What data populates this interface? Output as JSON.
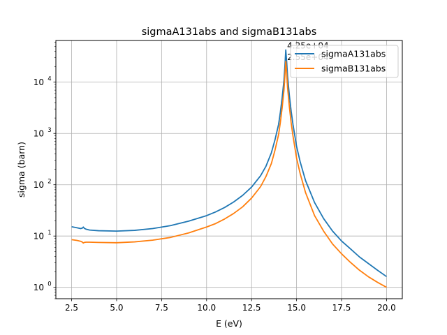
{
  "chart_data": {
    "type": "line",
    "title": "sigmaA131abs and sigmaB131abs",
    "xlabel": "E (eV)",
    "ylabel": "sigma (barn)",
    "x_scale": "linear",
    "y_scale": "log",
    "xlim": [
      1.625,
      20.875
    ],
    "ylim": [
      0.6,
      65000
    ],
    "grid": true,
    "legend_position": "upper-right",
    "x_ticks": [
      {
        "value": 2.5,
        "label": "2.5"
      },
      {
        "value": 5.0,
        "label": "5.0"
      },
      {
        "value": 7.5,
        "label": "7.5"
      },
      {
        "value": 10.0,
        "label": "10.0"
      },
      {
        "value": 12.5,
        "label": "12.5"
      },
      {
        "value": 15.0,
        "label": "15.0"
      },
      {
        "value": 17.5,
        "label": "17.5"
      },
      {
        "value": 20.0,
        "label": "20.0"
      }
    ],
    "y_ticks": [
      {
        "value": 1,
        "base": "10",
        "exp": "0"
      },
      {
        "value": 10,
        "base": "10",
        "exp": "1"
      },
      {
        "value": 100,
        "base": "10",
        "exp": "2"
      },
      {
        "value": 1000,
        "base": "10",
        "exp": "3"
      },
      {
        "value": 10000,
        "base": "10",
        "exp": "4"
      }
    ],
    "series": [
      {
        "name": "sigmaA131abs",
        "color": "#1f77b4",
        "x": [
          2.5,
          2.8,
          3.0,
          3.1,
          3.15,
          3.2,
          3.3,
          3.5,
          4.0,
          5.0,
          6.0,
          7.0,
          8.0,
          9.0,
          10.0,
          10.5,
          11.0,
          11.5,
          12.0,
          12.5,
          13.0,
          13.3,
          13.6,
          13.8,
          14.0,
          14.1,
          14.2,
          14.3,
          14.35,
          14.4,
          14.45,
          14.5,
          14.6,
          14.7,
          14.8,
          15.0,
          15.2,
          15.5,
          16.0,
          16.5,
          17.0,
          17.5,
          18.0,
          18.5,
          19.0,
          19.5,
          20.0
        ],
        "y": [
          15.2,
          14.5,
          14.0,
          14.3,
          15.0,
          14.2,
          13.6,
          13.1,
          12.7,
          12.5,
          12.9,
          14.0,
          16.0,
          19.5,
          25.0,
          29.5,
          36.0,
          46.0,
          62.0,
          90.0,
          150.0,
          230.0,
          420.0,
          750.0,
          1500.0,
          2600.0,
          5000.0,
          11000.0,
          20000.0,
          42500.0,
          25000.0,
          13000.0,
          5500.0,
          2700.0,
          1500.0,
          560.0,
          280.0,
          120.0,
          45.0,
          22.0,
          12.5,
          8.0,
          5.6,
          3.9,
          2.9,
          2.15,
          1.62
        ]
      },
      {
        "name": "sigmaB131abs",
        "color": "#ff7f0e",
        "x": [
          2.5,
          2.8,
          3.0,
          3.1,
          3.15,
          3.2,
          3.3,
          3.5,
          4.0,
          5.0,
          6.0,
          7.0,
          8.0,
          9.0,
          10.0,
          10.5,
          11.0,
          11.5,
          12.0,
          12.5,
          13.0,
          13.3,
          13.6,
          13.8,
          14.0,
          14.1,
          14.2,
          14.3,
          14.35,
          14.4,
          14.45,
          14.5,
          14.6,
          14.7,
          14.8,
          15.0,
          15.2,
          15.5,
          16.0,
          16.5,
          17.0,
          17.5,
          18.0,
          18.5,
          19.0,
          19.5,
          20.0
        ],
        "y": [
          8.5,
          8.2,
          7.9,
          7.6,
          7.3,
          7.5,
          7.6,
          7.6,
          7.5,
          7.4,
          7.7,
          8.3,
          9.4,
          11.5,
          15.0,
          17.5,
          21.5,
          27.5,
          37.0,
          55.0,
          92.0,
          145.0,
          260.0,
          470.0,
          950.0,
          1650.0,
          3200.0,
          7000.0,
          13000.0,
          25500.0,
          15000.0,
          7800.0,
          3300.0,
          1600.0,
          900.0,
          330.0,
          165.0,
          70.0,
          25.0,
          12.5,
          7.0,
          4.5,
          3.05,
          2.15,
          1.6,
          1.25,
          1.0
        ]
      }
    ],
    "annotations": [
      {
        "text": "4.25e+04",
        "x": 14.4,
        "y": 42500
      },
      {
        "text": "2.55e+04",
        "x": 14.4,
        "y": 25500
      }
    ]
  }
}
